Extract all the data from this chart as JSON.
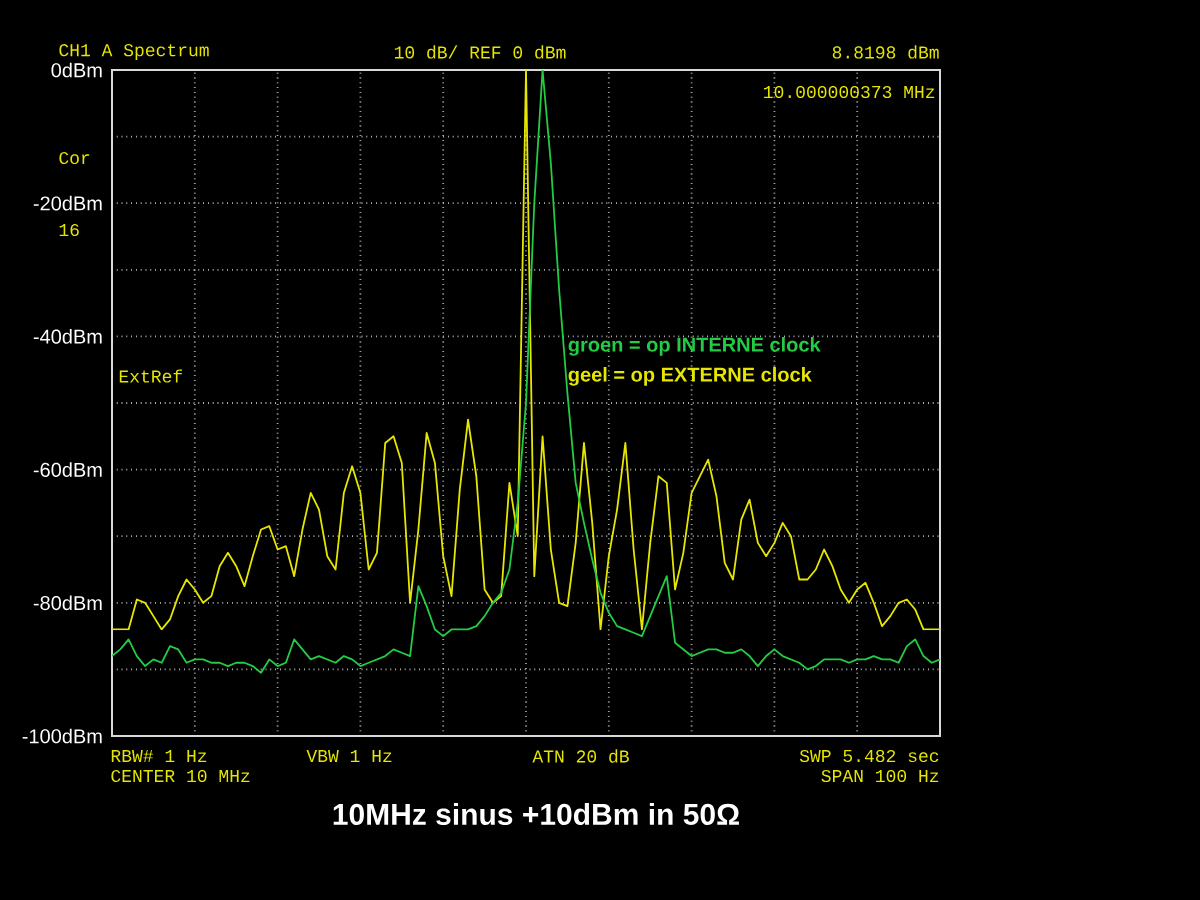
{
  "chart_data": {
    "type": "line",
    "title": "10MHz sinus  +10dBm in 50Ω",
    "categories": [
      null,
      null,
      null,
      null,
      null,
      null,
      null,
      null,
      null,
      null,
      null,
      null,
      null,
      null,
      null,
      null,
      null,
      null,
      null,
      null,
      null,
      null,
      null,
      null,
      null,
      null,
      null,
      null,
      null,
      null,
      null,
      null,
      null,
      null,
      null,
      null,
      null,
      null,
      null,
      null,
      null,
      null,
      null,
      null,
      null,
      null,
      null,
      null,
      null,
      null,
      null,
      null,
      null,
      null,
      null,
      null,
      null,
      null,
      null,
      null,
      null,
      null,
      null,
      null,
      null,
      null,
      null,
      null,
      null,
      null,
      null,
      null,
      null,
      null,
      null,
      null,
      null,
      null,
      null,
      null,
      null,
      null,
      null,
      null,
      null,
      null,
      null,
      null,
      null,
      null,
      null,
      null,
      null,
      null,
      null,
      null,
      null,
      null,
      null,
      null,
      null
    ],
    "ylim": [
      -100,
      0
    ],
    "yticks": [
      {
        "value": -100,
        "label": "-100dBm"
      },
      {
        "value": -90,
        "label": null
      },
      {
        "value": -80,
        "label": "-80dBm"
      },
      {
        "value": -70,
        "label": null
      },
      {
        "value": -60,
        "label": "-60dBm"
      },
      {
        "value": -50,
        "label": null
      },
      {
        "value": -40,
        "label": "-40dBm"
      },
      {
        "value": -30,
        "label": null
      },
      {
        "value": -20,
        "label": "-20dBm"
      },
      {
        "value": -10,
        "label": null
      },
      {
        "value": 0,
        "label": "0dBm"
      }
    ],
    "tick_labels": "y",
    "grid": true,
    "marker": "none",
    "line_style": "solid",
    "series": [
      {
        "name": "geel   = op EXTERNE clock",
        "color": "#e6e600",
        "values": [
          -84,
          -84,
          -84,
          -79.5,
          -80,
          -82,
          -84,
          -82.5,
          -79,
          -76.5,
          -78,
          -80,
          -79,
          -74.5,
          -72.5,
          -74.5,
          -77.5,
          -73,
          -69,
          -68.5,
          -72,
          -71.5,
          -76,
          -69,
          -63.5,
          -66,
          -73,
          -75,
          -63.5,
          -59.5,
          -63.5,
          -75,
          -72.5,
          -56,
          -55,
          -59,
          -80,
          -69,
          -54.5,
          -59,
          -73,
          -79,
          -63,
          -52.5,
          -61,
          -78,
          -80,
          -79,
          -62,
          -70,
          0,
          -76,
          -55,
          -72,
          -80,
          -80.5,
          -71,
          -56,
          -68,
          -84,
          -73,
          -66,
          -56,
          -72,
          -84,
          -71,
          -61,
          -62,
          -78,
          -72.5,
          -63.5,
          -61,
          -58.5,
          -64,
          -74,
          -76.5,
          -67.5,
          -64.5,
          -71,
          -73,
          -71,
          -68,
          -70,
          -76.5,
          -76.5,
          -75,
          -72,
          -74.5,
          -78,
          -80,
          -78,
          -77,
          -80,
          -83.5,
          -82,
          -80,
          -79.5,
          -81,
          -84,
          -84,
          -84
        ]
      },
      {
        "name": "groen = op INTERNE clock",
        "color": "#22cc44",
        "values": [
          -88,
          -87,
          -85.5,
          -88,
          -89.5,
          -88.5,
          -89,
          -86.5,
          -87,
          -89,
          -88.5,
          -88.5,
          -89,
          -89,
          -89.5,
          -89,
          -89,
          -89.5,
          -90.5,
          -88.5,
          -89.5,
          -89,
          -85.5,
          -87,
          -88.5,
          -88,
          -88.5,
          -89,
          -88,
          -88.5,
          -89.5,
          -89,
          -88.5,
          -88,
          -87,
          -87.5,
          -88,
          -77.5,
          -80.5,
          -84,
          -85,
          -84,
          -84,
          -84,
          -83.5,
          -82,
          -80,
          -78.5,
          -75,
          -65,
          -50,
          -20,
          0,
          -14,
          -33,
          -48.5,
          -62,
          -68,
          -73.5,
          -78.5,
          -81.5,
          -83.5,
          -84,
          -84.5,
          -85,
          -82,
          -79,
          -76,
          -86,
          -87,
          -88,
          -87.5,
          -87,
          -87,
          -87.5,
          -87.5,
          -87,
          -88,
          -89.5,
          -88,
          -87,
          -88,
          -88.5,
          -89,
          -90,
          -89.5,
          -88.5,
          -88.5,
          -88.5,
          -89,
          -88.5,
          -88.5,
          -88,
          -88.5,
          -88.5,
          -89,
          -86.5,
          -85.5,
          -88,
          -89,
          -88.5
        ]
      }
    ],
    "annotations": [
      "CH1  A  Spectrum",
      "10 dB/ REF 0 dBm",
      "8.8198 dBm",
      "10.000000373 MHz",
      "Cor",
      "16",
      "ExtRef",
      "RBW# 1 Hz",
      "VBW 1 Hz",
      "ATN  20 dB",
      "SWP  5.482 sec",
      "CENTER  10 MHz",
      "SPAN  100 Hz"
    ]
  }
}
